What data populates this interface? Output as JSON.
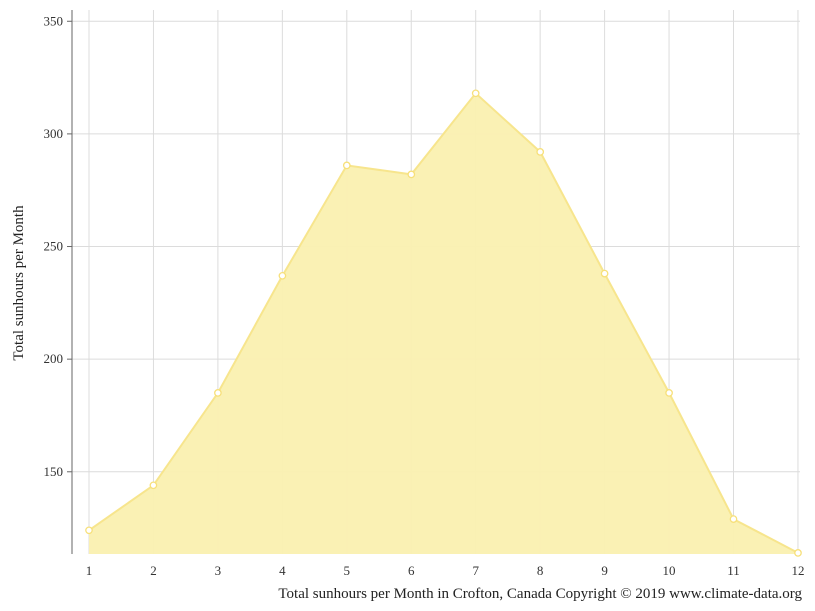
{
  "chart_data": {
    "type": "area",
    "x": [
      1,
      2,
      3,
      4,
      5,
      6,
      7,
      8,
      9,
      10,
      11,
      12
    ],
    "series": [
      {
        "values": [
          124,
          144,
          185,
          237,
          286,
          282,
          318,
          292,
          238,
          185,
          129,
          114
        ]
      }
    ],
    "xlabel": "",
    "ylabel": "Total sunhours per Month",
    "caption": "Total sunhours per Month in Crofton, Canada Copyright © 2019 www.climate-data.org",
    "ylim": [
      113.5,
      355
    ],
    "yticks": [
      150,
      200,
      250,
      300,
      350
    ],
    "xticks": [
      "1",
      "2",
      "3",
      "4",
      "5",
      "6",
      "7",
      "8",
      "9",
      "10",
      "11",
      "12"
    ],
    "grid": true,
    "legend": "none",
    "colors": {
      "fill": "#faf0b0",
      "stroke": "#f7e58d",
      "point": "#f7e07a",
      "grid": "#dcdcdc",
      "axis": "#666666"
    }
  }
}
